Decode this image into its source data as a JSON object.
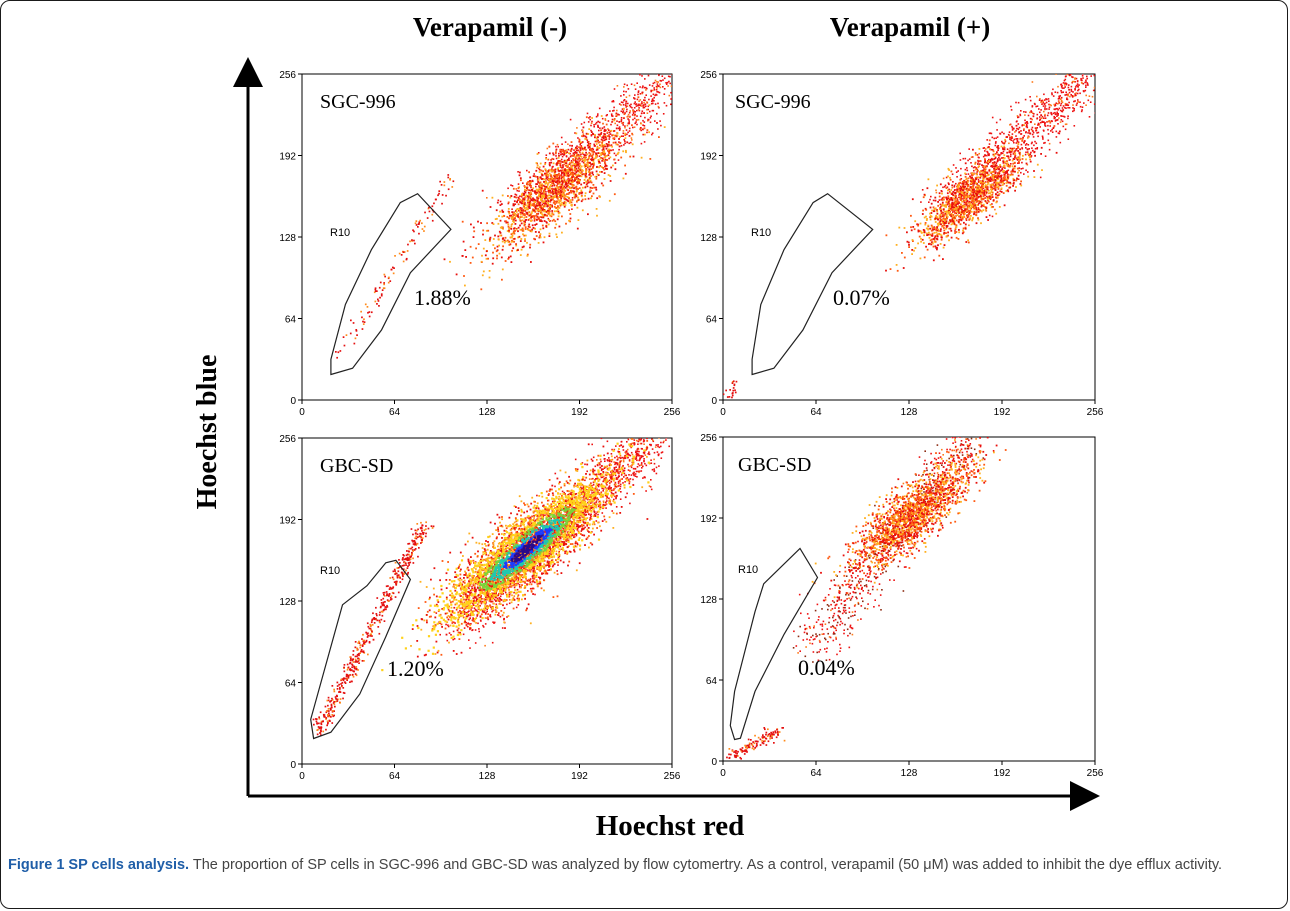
{
  "figure": {
    "column_titles": [
      "Verapamil (-)",
      "Verapamil (+)"
    ],
    "y_axis_label": "Hoechst blue",
    "x_axis_label": "Hoechst red",
    "caption": {
      "head": "Figure 1 SP cells analysis.",
      "body": " The proportion of SP cells in SGC-996 and GBC-SD was analyzed by flow cytomertry. As a control, verapamil (50 μM) was added to inhibit the dye efflux activity."
    }
  },
  "chart_data": [
    {
      "type": "scatter",
      "cell_line": "SGC-996",
      "verapamil": "-",
      "gate": "R10",
      "sp_percent": "1.88%",
      "xlim": [
        0,
        256
      ],
      "ylim": [
        0,
        256
      ],
      "x_ticks": [
        "0",
        "64",
        "128",
        "192",
        "256"
      ],
      "y_ticks": [
        "0",
        "64",
        "128",
        "192",
        "256"
      ],
      "gate_polygon": [
        [
          20,
          20
        ],
        [
          35,
          25
        ],
        [
          55,
          55
        ],
        [
          75,
          100
        ],
        [
          103,
          134
        ],
        [
          80,
          162
        ],
        [
          68,
          155
        ],
        [
          48,
          118
        ],
        [
          30,
          75
        ],
        [
          20,
          32
        ]
      ],
      "main_population": {
        "cx": 175,
        "cy": 165,
        "spread": 22,
        "count": 1500,
        "dense_core": false
      },
      "upper_tail": {
        "from": [
          150,
          150
        ],
        "to": [
          256,
          255
        ],
        "count": 900
      },
      "sp_stream": {
        "from": [
          25,
          35
        ],
        "to": [
          105,
          180
        ],
        "count": 120
      }
    },
    {
      "type": "scatter",
      "cell_line": "SGC-996",
      "verapamil": "+",
      "gate": "R10",
      "sp_percent": "0.07%",
      "xlim": [
        0,
        256
      ],
      "ylim": [
        0,
        256
      ],
      "x_ticks": [
        "0",
        "64",
        "128",
        "192",
        "256"
      ],
      "y_ticks": [
        "0",
        "64",
        "128",
        "192",
        "256"
      ],
      "gate_polygon": [
        [
          20,
          20
        ],
        [
          35,
          25
        ],
        [
          55,
          55
        ],
        [
          75,
          100
        ],
        [
          103,
          134
        ],
        [
          72,
          162
        ],
        [
          62,
          155
        ],
        [
          42,
          118
        ],
        [
          26,
          75
        ],
        [
          20,
          32
        ]
      ],
      "main_population": {
        "cx": 170,
        "cy": 160,
        "spread": 18,
        "count": 1200,
        "dense_core": false
      },
      "upper_tail": {
        "from": [
          155,
          150
        ],
        "to": [
          250,
          256
        ],
        "count": 1000
      },
      "sp_stream": {
        "from": [
          2,
          3
        ],
        "to": [
          10,
          14
        ],
        "count": 20
      }
    },
    {
      "type": "scatter",
      "cell_line": "GBC-SD",
      "verapamil": "-",
      "gate": "R10",
      "sp_percent": "1.20%",
      "xlim": [
        0,
        256
      ],
      "ylim": [
        0,
        256
      ],
      "x_ticks": [
        "0",
        "64",
        "128",
        "192",
        "256"
      ],
      "y_ticks": [
        "0",
        "64",
        "128",
        "192",
        "256"
      ],
      "gate_polygon": [
        [
          8,
          20
        ],
        [
          20,
          25
        ],
        [
          40,
          55
        ],
        [
          58,
          100
        ],
        [
          75,
          145
        ],
        [
          65,
          160
        ],
        [
          58,
          158
        ],
        [
          45,
          140
        ],
        [
          28,
          125
        ],
        [
          6,
          35
        ]
      ],
      "main_population": {
        "cx": 155,
        "cy": 170,
        "spread": 26,
        "count": 2600,
        "dense_core": true
      },
      "upper_tail": {
        "from": [
          110,
          110
        ],
        "to": [
          240,
          256
        ],
        "count": 1600
      },
      "sp_stream": {
        "from": [
          10,
          25
        ],
        "to": [
          85,
          190
        ],
        "count": 500
      }
    },
    {
      "type": "scatter",
      "cell_line": "GBC-SD",
      "verapamil": "+",
      "gate": "R10",
      "sp_percent": "0.04%",
      "xlim": [
        0,
        256
      ],
      "ylim": [
        0,
        256
      ],
      "x_ticks": [
        "0",
        "64",
        "128",
        "192",
        "256"
      ],
      "y_ticks": [
        "0",
        "64",
        "128",
        "192",
        "256"
      ],
      "gate_polygon": [
        [
          8,
          17
        ],
        [
          12,
          18
        ],
        [
          22,
          55
        ],
        [
          42,
          100
        ],
        [
          65,
          145
        ],
        [
          53,
          168
        ],
        [
          28,
          140
        ],
        [
          22,
          118
        ],
        [
          8,
          55
        ],
        [
          5,
          28
        ]
      ],
      "main_population": {
        "cx": 130,
        "cy": 195,
        "spread": 20,
        "count": 1600,
        "dense_core": false
      },
      "upper_tail": {
        "from": [
          60,
          90
        ],
        "to": [
          170,
          256
        ],
        "count": 800
      },
      "sp_stream": {
        "from": [
          2,
          3
        ],
        "to": [
          40,
          25
        ],
        "count": 120
      }
    }
  ]
}
